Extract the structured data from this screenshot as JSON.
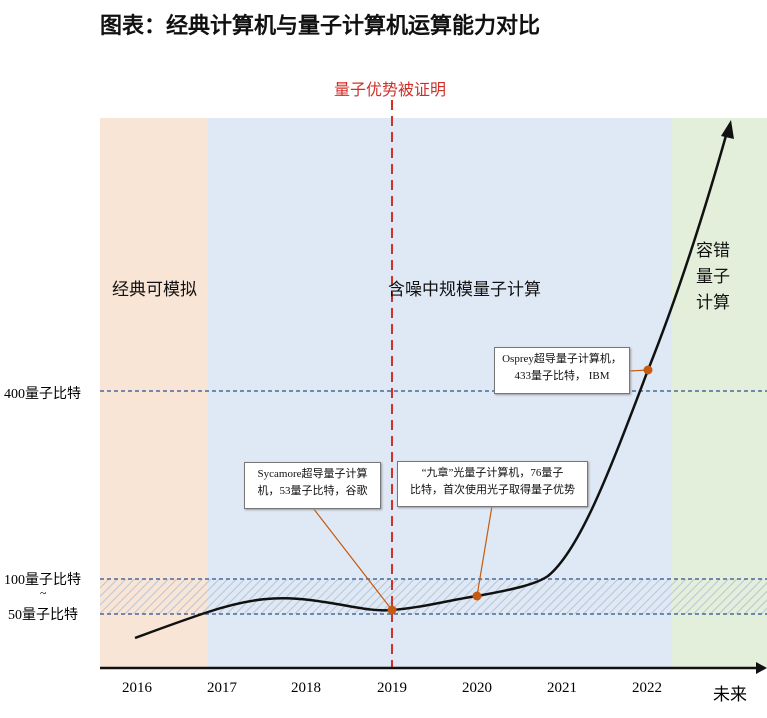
{
  "title": "图表：经典计算机与量子计算机运算能力对比",
  "milestone_label": "量子优势被证明",
  "regions": [
    {
      "label": "经典可模拟",
      "color": "#f8e5d6"
    },
    {
      "label": "含噪中规模量子计算",
      "color": "#dfe9f6"
    },
    {
      "label": "容错\n量子\n计算",
      "color": "#e3eedb"
    }
  ],
  "y_labels": {
    "top": "400量子比特",
    "upper": "100量子比特",
    "tilde": "~",
    "lower": "50量子比特"
  },
  "x_labels": [
    "2016",
    "2017",
    "2018",
    "2019",
    "2020",
    "2021",
    "2022",
    "未来"
  ],
  "annotations": [
    {
      "line1": "Sycamore超导量子计算",
      "line2": "机，53量子比特，谷歌"
    },
    {
      "line1": "“九章”光量子计算机，76量子",
      "line2": "比特，首次使用光子取得量子优势"
    },
    {
      "line1": "Osprey超导量子计算机，",
      "line2": "433量子比特， IBM"
    }
  ],
  "colors": {
    "curve": "#111111",
    "milestone": "#d0302a",
    "marker": "#c65a10",
    "guide": "#4a6a9a"
  }
}
